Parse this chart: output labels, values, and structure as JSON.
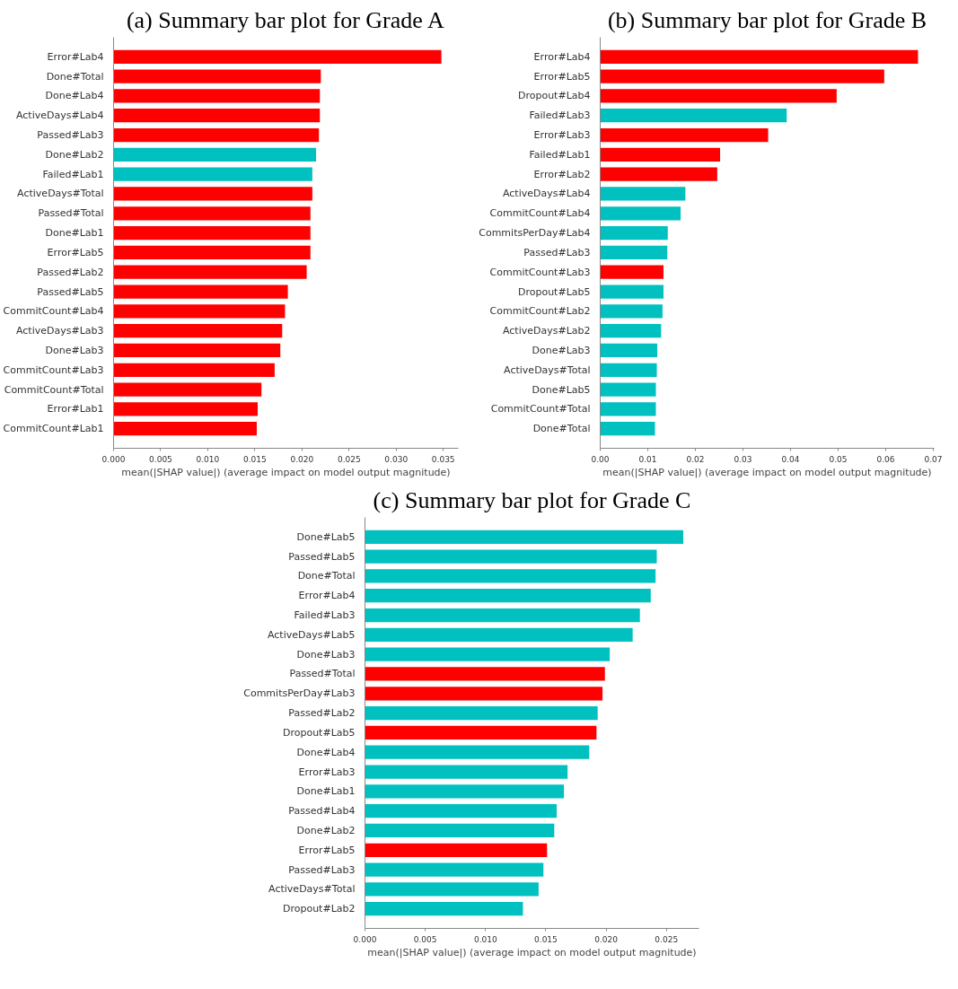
{
  "chart_data": [
    {
      "type": "bar",
      "orientation": "horizontal",
      "title": "(a) Summary bar plot for Grade A",
      "xlabel": "mean(|SHAP value|) (average impact on model output magnitude)",
      "categories": [
        "Error#Lab4",
        "Done#Total",
        "Done#Lab4",
        "ActiveDays#Lab4",
        "Passed#Lab3",
        "Done#Lab2",
        "Failed#Lab1",
        "ActiveDays#Total",
        "Passed#Total",
        "Done#Lab1",
        "Error#Lab5",
        "Passed#Lab2",
        "Passed#Lab5",
        "CommitCount#Lab4",
        "ActiveDays#Lab3",
        "Done#Lab3",
        "CommitCount#Lab3",
        "CommitCount#Total",
        "Error#Lab1",
        "CommitCount#Lab1"
      ],
      "values": [
        0.0348,
        0.022,
        0.0219,
        0.0219,
        0.0218,
        0.0215,
        0.0211,
        0.0211,
        0.0209,
        0.0209,
        0.0209,
        0.0205,
        0.0185,
        0.0182,
        0.0179,
        0.0177,
        0.0171,
        0.0157,
        0.0153,
        0.0152
      ],
      "colors": [
        "#ff0000",
        "#ff0000",
        "#ff0000",
        "#ff0000",
        "#ff0000",
        "#00c0c0",
        "#00c0c0",
        "#ff0000",
        "#ff0000",
        "#ff0000",
        "#ff0000",
        "#ff0000",
        "#ff0000",
        "#ff0000",
        "#ff0000",
        "#ff0000",
        "#ff0000",
        "#ff0000",
        "#ff0000",
        "#ff0000"
      ],
      "xlim": [
        0,
        0.0366
      ],
      "xticks": [
        {
          "value": 0,
          "label": "0.000"
        },
        {
          "value": 0.005,
          "label": "0.005"
        },
        {
          "value": 0.01,
          "label": "0.010"
        },
        {
          "value": 0.015,
          "label": "0.015"
        },
        {
          "value": 0.02,
          "label": "0.020"
        },
        {
          "value": 0.025,
          "label": "0.025"
        },
        {
          "value": 0.03,
          "label": "0.030"
        },
        {
          "value": 0.035,
          "label": "0.035"
        }
      ]
    },
    {
      "type": "bar",
      "orientation": "horizontal",
      "title": "(b) Summary bar plot for Grade B",
      "xlabel": "mean(|SHAP value|) (average impact on model output magnitude)",
      "categories": [
        "Error#Lab4",
        "Error#Lab5",
        "Dropout#Lab4",
        "Failed#Lab3",
        "Error#Lab3",
        "Failed#Lab1",
        "Error#Lab2",
        "ActiveDays#Lab4",
        "CommitCount#Lab4",
        "CommitsPerDay#Lab4",
        "Passed#Lab3",
        "CommitCount#Lab3",
        "Dropout#Lab5",
        "CommitCount#Lab2",
        "ActiveDays#Lab2",
        "Done#Lab3",
        "ActiveDays#Total",
        "Done#Lab5",
        "CommitCount#Total",
        "Done#Total"
      ],
      "values": [
        0.0668,
        0.0597,
        0.0497,
        0.0392,
        0.0353,
        0.0252,
        0.0246,
        0.0179,
        0.0169,
        0.0142,
        0.0141,
        0.0133,
        0.0133,
        0.0131,
        0.0128,
        0.012,
        0.0119,
        0.0117,
        0.0117,
        0.0115
      ],
      "colors": [
        "#ff0000",
        "#ff0000",
        "#ff0000",
        "#00c0c0",
        "#ff0000",
        "#ff0000",
        "#ff0000",
        "#00c0c0",
        "#00c0c0",
        "#00c0c0",
        "#00c0c0",
        "#ff0000",
        "#00c0c0",
        "#00c0c0",
        "#00c0c0",
        "#00c0c0",
        "#00c0c0",
        "#00c0c0",
        "#00c0c0",
        "#00c0c0"
      ],
      "xlim": [
        0,
        0.0702
      ],
      "xticks": [
        {
          "value": 0,
          "label": "0.00"
        },
        {
          "value": 0.01,
          "label": "0.01"
        },
        {
          "value": 0.02,
          "label": "0.02"
        },
        {
          "value": 0.03,
          "label": "0.03"
        },
        {
          "value": 0.04,
          "label": "0.04"
        },
        {
          "value": 0.05,
          "label": "0.05"
        },
        {
          "value": 0.06,
          "label": "0.06"
        },
        {
          "value": 0.07,
          "label": "0.07"
        }
      ]
    },
    {
      "type": "bar",
      "orientation": "horizontal",
      "title": "(c) Summary bar plot for Grade C",
      "xlabel": "mean(|SHAP value|) (average impact on model output magnitude)",
      "categories": [
        "Done#Lab5",
        "Passed#Lab5",
        "Done#Total",
        "Error#Lab4",
        "Failed#Lab3",
        "ActiveDays#Lab5",
        "Done#Lab3",
        "Passed#Total",
        "CommitsPerDay#Lab3",
        "Passed#Lab2",
        "Dropout#Lab5",
        "Done#Lab4",
        "Error#Lab3",
        "Done#Lab1",
        "Passed#Lab4",
        "Done#Lab2",
        "Error#Lab5",
        "Passed#Lab3",
        "ActiveDays#Total",
        "Dropout#Lab2"
      ],
      "values": [
        0.0264,
        0.0242,
        0.0241,
        0.0237,
        0.0228,
        0.0222,
        0.0203,
        0.0199,
        0.0197,
        0.0193,
        0.0192,
        0.0186,
        0.0168,
        0.0165,
        0.0159,
        0.0157,
        0.0151,
        0.0148,
        0.0144,
        0.0131
      ],
      "colors": [
        "#00c0c0",
        "#00c0c0",
        "#00c0c0",
        "#00c0c0",
        "#00c0c0",
        "#00c0c0",
        "#00c0c0",
        "#ff0000",
        "#ff0000",
        "#00c0c0",
        "#ff0000",
        "#00c0c0",
        "#00c0c0",
        "#00c0c0",
        "#00c0c0",
        "#00c0c0",
        "#ff0000",
        "#00c0c0",
        "#00c0c0",
        "#00c0c0"
      ],
      "xlim": [
        0,
        0.0277
      ],
      "xticks": [
        {
          "value": 0,
          "label": "0.000"
        },
        {
          "value": 0.005,
          "label": "0.005"
        },
        {
          "value": 0.01,
          "label": "0.010"
        },
        {
          "value": 0.015,
          "label": "0.015"
        },
        {
          "value": 0.02,
          "label": "0.020"
        },
        {
          "value": 0.025,
          "label": "0.025"
        }
      ]
    }
  ]
}
